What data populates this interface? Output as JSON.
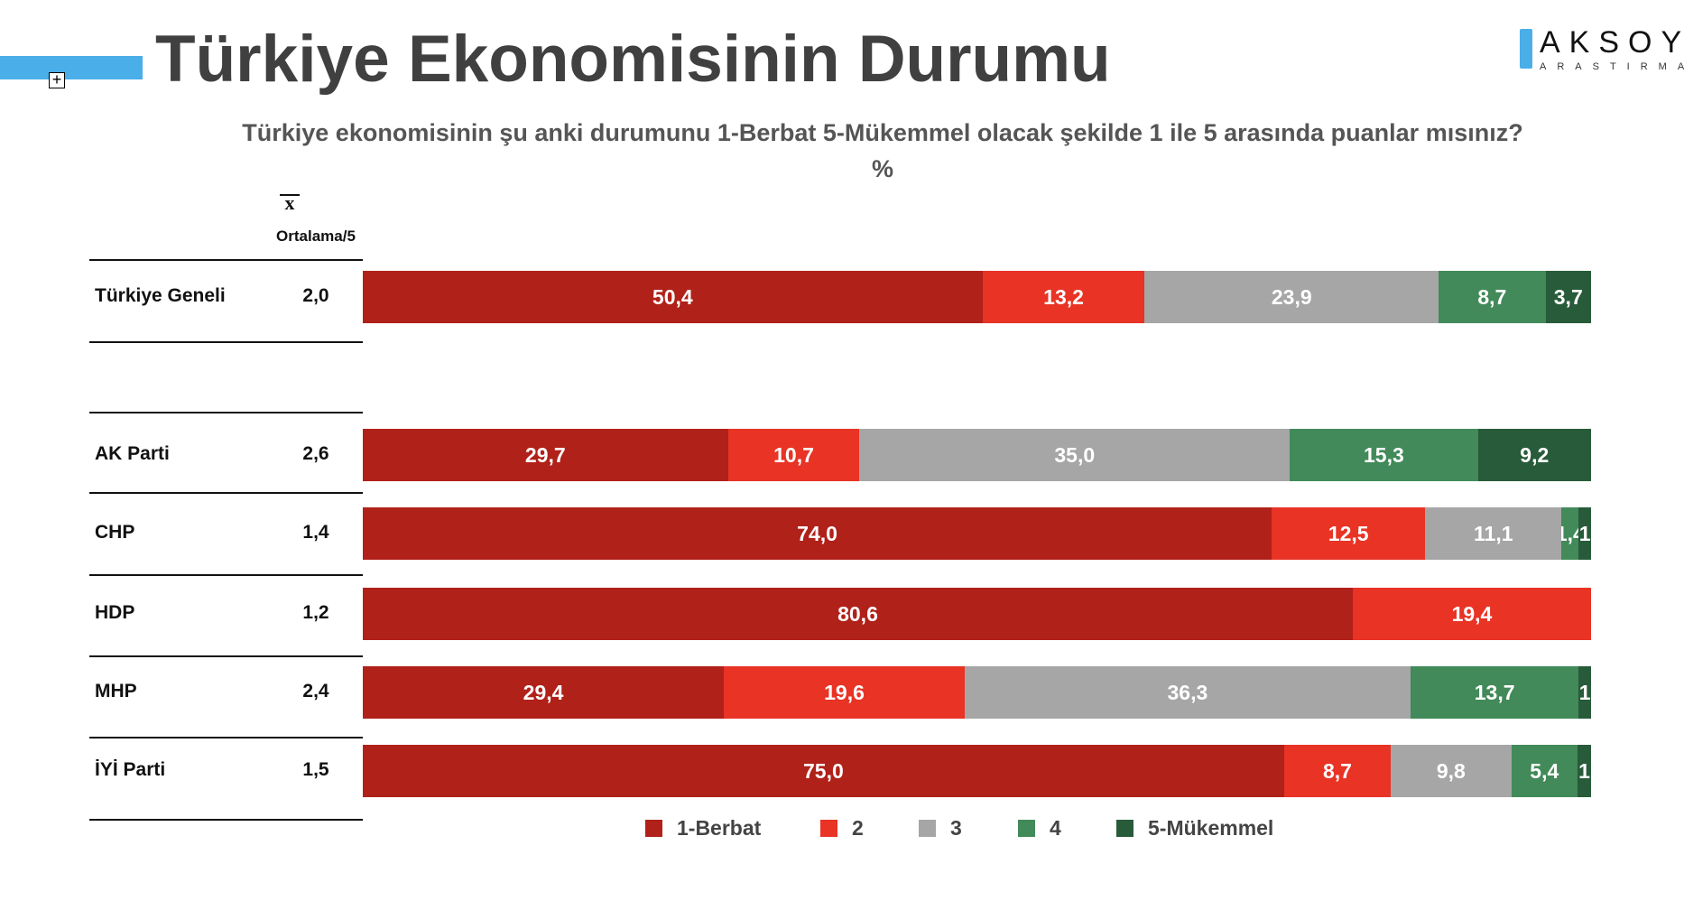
{
  "title": "Türkiye Ekonomisinin Durumu",
  "logo": {
    "main": "AKSOY",
    "sub": "ARASTIRMA"
  },
  "subtitle": "Türkiye ekonomisinin şu anki durumunu 1-Berbat 5-Mükemmel olacak şekilde 1 ile 5 arasında puanlar mısınız?",
  "unit": "%",
  "avg_symbol": "x",
  "avg_header": "Ortalama/5",
  "chart_data": {
    "type": "bar",
    "orientation": "horizontal",
    "stacked": true,
    "categories": [
      "Türkiye Geneli",
      "AK Parti",
      "CHP",
      "HDP",
      "MHP",
      "İYİ Parti"
    ],
    "averages": [
      "2,0",
      "2,6",
      "1,4",
      "1,2",
      "2,4",
      "1,5"
    ],
    "series": [
      {
        "name": "1-Berbat",
        "color": "#b02119",
        "values": [
          50.4,
          29.7,
          74.0,
          80.6,
          29.4,
          75.0
        ],
        "labels": [
          "50,4",
          "29,7",
          "74,0",
          "80,6",
          "29,4",
          "75,0"
        ]
      },
      {
        "name": "2",
        "color": "#e83325",
        "values": [
          13.2,
          10.7,
          12.5,
          19.4,
          19.6,
          8.7
        ],
        "labels": [
          "13,2",
          "10,7",
          "12,5",
          "19,4",
          "19,6",
          "8,7"
        ]
      },
      {
        "name": "3",
        "color": "#a6a6a6",
        "values": [
          23.9,
          35.0,
          11.1,
          0,
          36.3,
          9.8
        ],
        "labels": [
          "23,9",
          "35,0",
          "11,1",
          "",
          "36,3",
          "9,8"
        ]
      },
      {
        "name": "4",
        "color": "#428a59",
        "values": [
          8.7,
          15.3,
          1.4,
          0,
          13.7,
          5.4
        ],
        "labels": [
          "8,7",
          "15,3",
          "1,4",
          "",
          "13,7",
          "5,4"
        ]
      },
      {
        "name": "5-Mükemmel",
        "color": "#285b3a",
        "values": [
          3.7,
          9.2,
          1.0,
          0,
          1.0,
          1.1
        ],
        "labels": [
          "3,7",
          "9,2",
          "1",
          "",
          "1",
          "1"
        ]
      }
    ],
    "xlim": [
      0,
      100
    ],
    "legend": "bottom"
  }
}
